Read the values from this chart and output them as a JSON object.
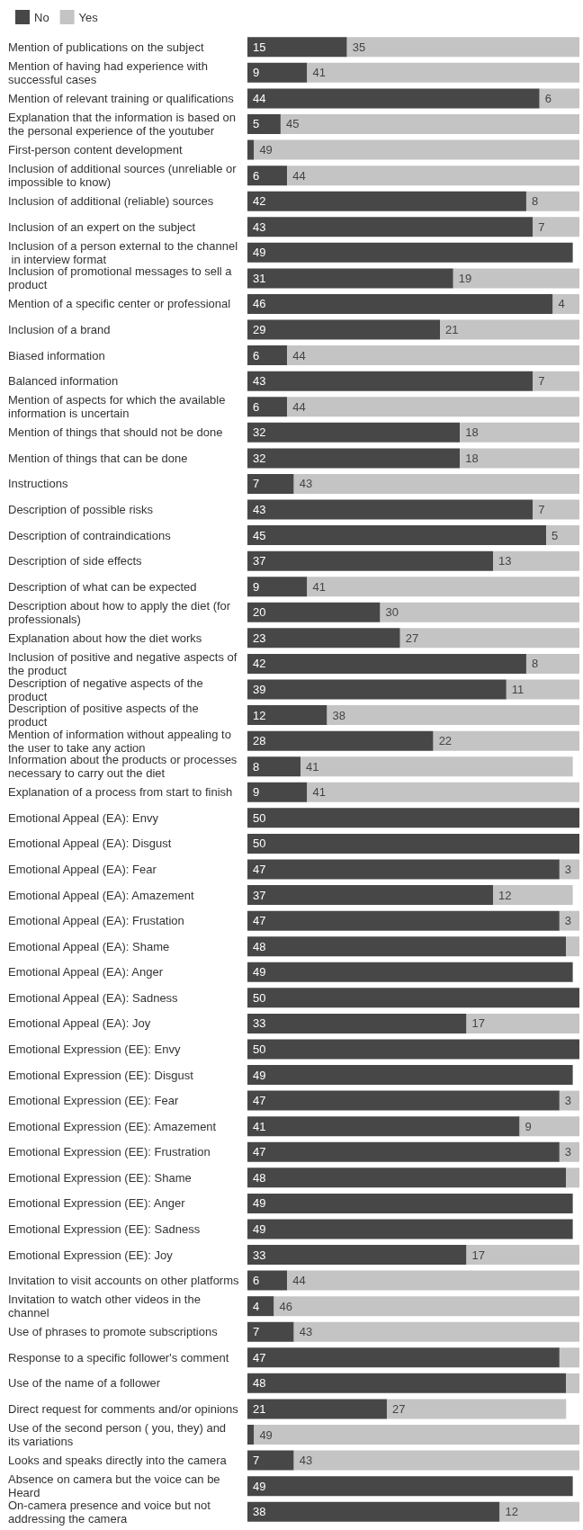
{
  "chart_data": {
    "type": "bar",
    "orientation": "horizontal",
    "stacked": true,
    "legend": "top left",
    "categories": [
      "Mention of publications on the subject",
      "Mention of having had experience with successful cases",
      "Mention of relevant training or qualifications",
      "Explanation that the information is based on the personal experience of the youtuber",
      "First-person content development",
      "Inclusion of additional sources (unreliable or impossible to know)",
      "Inclusion of additional (reliable) sources",
      "Inclusion of an expert on the subject",
      "Inclusion of a person external to the channel in interview format",
      "Inclusion of promotional messages to sell a product",
      "Mention of a specific center or professional",
      "Inclusion of a brand",
      "Biased information",
      "Balanced information",
      "Mention of aspects for which the available information is uncertain",
      "Mention of things that should not be done",
      "Mention of things that can be done",
      "Instructions",
      "Description of possible risks",
      "Description of contraindications",
      "Description of side effects",
      "Description of what can be expected",
      "Description about how to apply the diet (for professionals)",
      "Explanation about how the diet works",
      "Inclusion of positive and negative aspects of the product",
      "Description of negative aspects of the product",
      "Description of positive aspects of the product",
      "Mention of information without appealing to the user to take any action",
      "Information about the products or processes necessary to carry out the diet",
      "Explanation of a process from start to finish",
      "Emotional Appeal (EA): Envy",
      "Emotional Appeal (EA): Disgust",
      "Emotional Appeal (EA): Fear",
      "Emotional Appeal (EA): Amazement",
      "Emotional Appeal (EA): Frustation",
      "Emotional Appeal (EA): Shame",
      "Emotional Appeal (EA): Anger",
      "Emotional Appeal (EA): Sadness",
      "Emotional Appeal (EA): Joy",
      "Emotional Expression (EE): Envy",
      "Emotional Expression (EE): Disgust",
      "Emotional Expression (EE): Fear",
      "Emotional Expression (EE): Amazement",
      "Emotional Expression (EE): Frustration",
      "Emotional Expression (EE): Shame",
      "Emotional Expression (EE): Anger",
      "Emotional Expression (EE): Sadness",
      "Emotional Expression (EE): Joy",
      "Invitation to visit accounts on other platforms",
      "Invitation to watch other videos in the channel",
      "Use of phrases to promote subscriptions",
      "Response to a specific follower's comment",
      "Use of the name of a follower",
      "Direct request for comments and/or opinions",
      "Use of the second person ( you, they) and its variations",
      "Looks and speaks directly into the camera",
      "Absence on camera but the voice can be Heard",
      "On-camera presence and voice but not addressing the camera"
    ],
    "series": [
      {
        "name": "No",
        "color": "#474747",
        "values": [
          15,
          9,
          44,
          5,
          1,
          6,
          42,
          43,
          49,
          31,
          46,
          29,
          6,
          43,
          6,
          32,
          32,
          7,
          43,
          45,
          37,
          9,
          20,
          23,
          42,
          39,
          12,
          28,
          8,
          9,
          50,
          50,
          47,
          37,
          47,
          48,
          49,
          50,
          33,
          50,
          49,
          47,
          41,
          47,
          48,
          49,
          49,
          33,
          6,
          4,
          7,
          47,
          48,
          21,
          1,
          7,
          49,
          38
        ],
        "value_labels": [
          "15",
          "9",
          "44",
          "5",
          null,
          "6",
          "42",
          "43",
          "49",
          "31",
          "46",
          "29",
          "6",
          "43",
          "6",
          "32",
          "32",
          "7",
          "43",
          "45",
          "37",
          "9",
          "20",
          "23",
          "42",
          "39",
          "12",
          "28",
          "8",
          "9",
          "50",
          "50",
          "47",
          "37",
          "47",
          "48",
          "49",
          "50",
          "33",
          "50",
          "49",
          "47",
          "41",
          "47",
          "48",
          "49",
          "49",
          "33",
          "6",
          "4",
          "7",
          "47",
          "48",
          "21",
          null,
          "7",
          "49",
          "38"
        ]
      },
      {
        "name": "Yes",
        "color": "#c4c4c4",
        "values": [
          35,
          41,
          6,
          45,
          49,
          44,
          8,
          7,
          null,
          19,
          4,
          21,
          44,
          7,
          44,
          18,
          18,
          43,
          7,
          5,
          13,
          41,
          30,
          27,
          8,
          11,
          38,
          22,
          41,
          41,
          null,
          null,
          3,
          12,
          3,
          2,
          null,
          null,
          17,
          null,
          null,
          3,
          9,
          3,
          2,
          null,
          null,
          17,
          44,
          46,
          43,
          3,
          2,
          27,
          49,
          43,
          null,
          12
        ],
        "value_labels": [
          "35",
          "41",
          "6",
          "45",
          "49",
          "44",
          "8",
          "7",
          null,
          "19",
          "4",
          "21",
          "44",
          "7",
          "44",
          "18",
          "18",
          "43",
          "7",
          "5",
          "13",
          "41",
          "30",
          "27",
          "8",
          "11",
          "38",
          "22",
          "41",
          "41",
          null,
          null,
          "3",
          "12",
          "3",
          null,
          null,
          null,
          "17",
          null,
          null,
          "3",
          "9",
          "3",
          null,
          null,
          null,
          "17",
          "44",
          "46",
          "43",
          null,
          null,
          "27",
          "49",
          "43",
          null,
          "12"
        ]
      }
    ]
  }
}
